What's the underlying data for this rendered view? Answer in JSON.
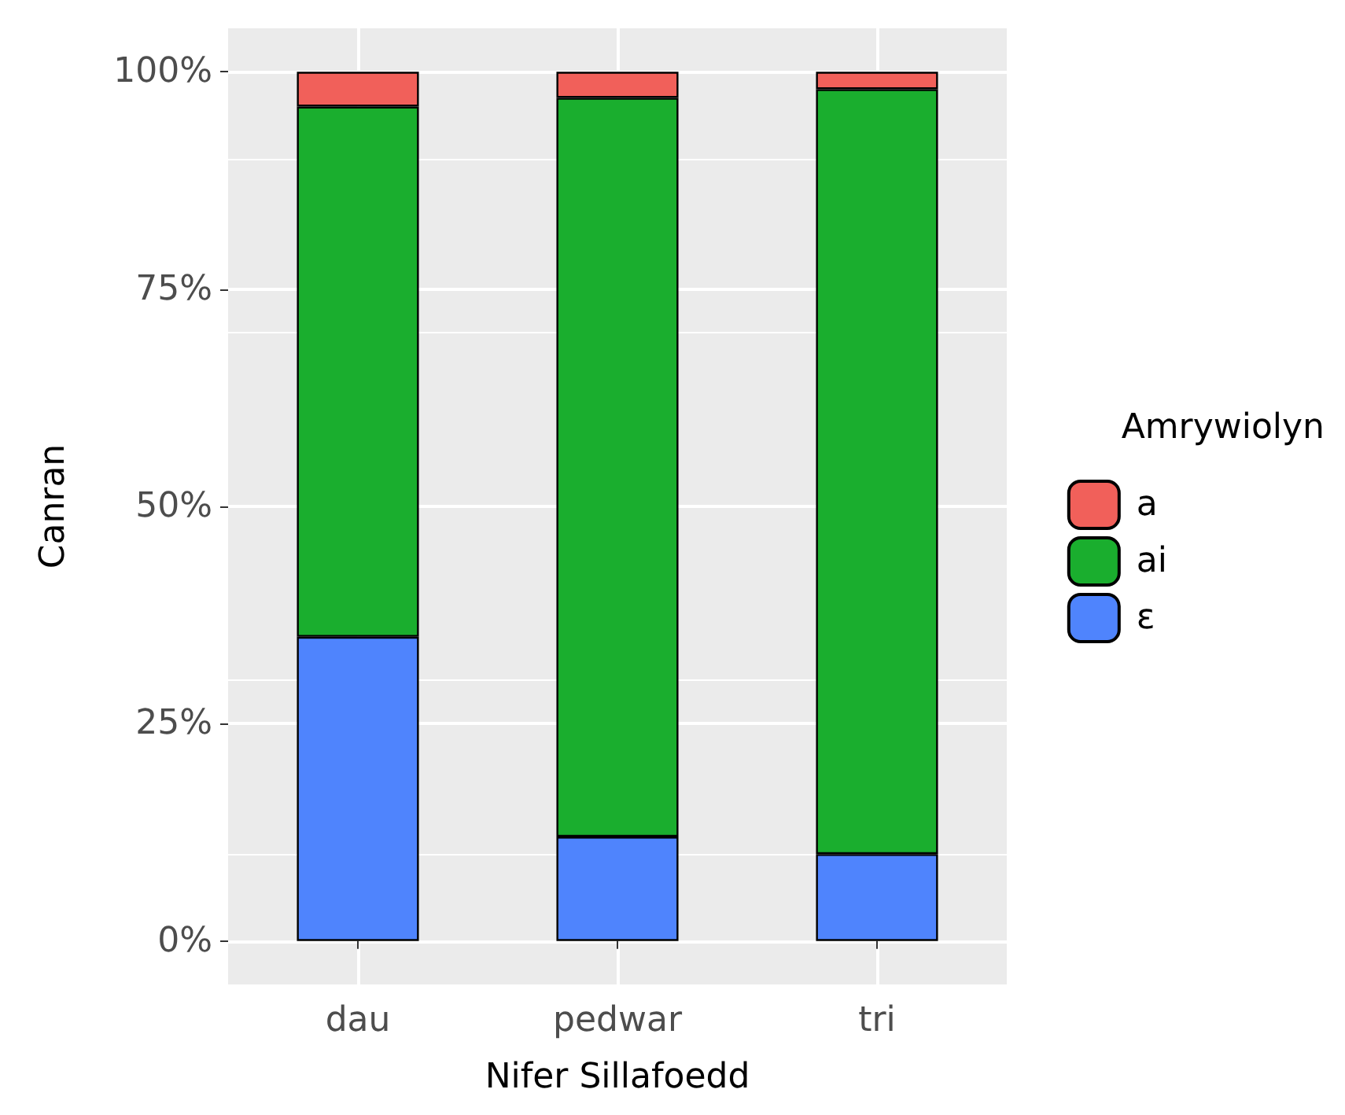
{
  "chart_data": {
    "type": "bar",
    "stacked": true,
    "xlabel": "Nifer Sillafoedd",
    "ylabel": "Canran",
    "legend_title": "Amrywiolyn",
    "categories": [
      "dau",
      "pedwar",
      "tri"
    ],
    "series": [
      {
        "name": "ɛ",
        "color": "#4f84fd",
        "values": [
          35,
          12,
          10
        ]
      },
      {
        "name": "ai",
        "color": "#1aae2e",
        "values": [
          61,
          85,
          88
        ]
      },
      {
        "name": "a",
        "color": "#f1605a",
        "values": [
          4,
          3,
          2
        ]
      }
    ],
    "ylim": [
      -5,
      105
    ],
    "yticks": [
      {
        "value": 0,
        "label": "0%"
      },
      {
        "value": 25,
        "label": "25%"
      },
      {
        "value": 50,
        "label": "50%"
      },
      {
        "value": 75,
        "label": "75%"
      },
      {
        "value": 100,
        "label": "100%"
      }
    ],
    "grid": true,
    "legend": "right"
  }
}
